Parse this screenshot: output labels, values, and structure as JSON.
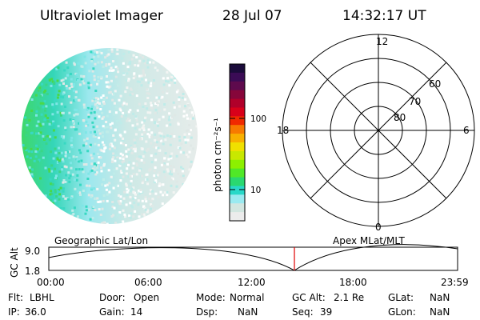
{
  "header": {
    "instrument": "Ultraviolet Imager",
    "date": "28 Jul 07",
    "time": "14:32:17 UT"
  },
  "colorbar": {
    "label": "photon cm⁻²s⁻¹",
    "ticks": [
      "100",
      "10"
    ],
    "colors": [
      "#1a0b3a",
      "#3a0b55",
      "#5e0a4d",
      "#86063a",
      "#b0002a",
      "#d8001a",
      "#f02a00",
      "#f77a00",
      "#f8b000",
      "#f0e000",
      "#c8e800",
      "#8cf000",
      "#50e828",
      "#2ad870",
      "#28d8c8",
      "#9aeaf0",
      "#d2e6e0",
      "#ececec"
    ]
  },
  "polar_plot": {
    "mlt_labels": [
      "12",
      "18",
      "6",
      "0"
    ],
    "lat_labels": [
      "60",
      "70",
      "80"
    ]
  },
  "timeline": {
    "y_axis_label": "GC Alt",
    "y_ticks": [
      "9.0",
      "1.8"
    ],
    "left_label": "Geographic Lat/Lon",
    "right_label": "Apex MLat/MLT",
    "x_ticks": [
      "00:00",
      "06:00",
      "12:00",
      "18:00",
      "23:59"
    ]
  },
  "status": {
    "row1": [
      {
        "key": "Flt:",
        "value": "LBHL"
      },
      {
        "key": "Door:",
        "value": "Open"
      },
      {
        "key": "Mode:",
        "value": "Normal"
      },
      {
        "key": "GC Alt:",
        "value": "2.1 Re"
      },
      {
        "key": "GLat:",
        "value": "NaN"
      }
    ],
    "row2": [
      {
        "key": "IP:",
        "value": "36.0"
      },
      {
        "key": "Gain:",
        "value": "14"
      },
      {
        "key": "Dsp:",
        "value": "NaN"
      },
      {
        "key": "Seq:",
        "value": "39"
      },
      {
        "key": "GLon:",
        "value": "NaN"
      }
    ]
  }
}
